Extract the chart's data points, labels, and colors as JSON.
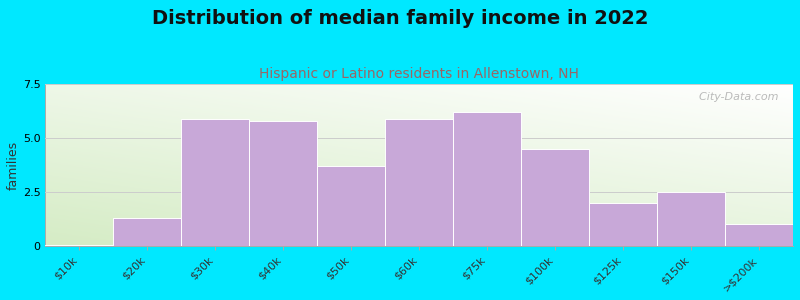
{
  "title": "Distribution of median family income in 2022",
  "subtitle": "Hispanic or Latino residents in Allenstown, NH",
  "ylabel": "families",
  "categories": [
    "$10k",
    "$20k",
    "$30k",
    "$40k",
    "$50k",
    "$60k",
    "$75k",
    "$100k",
    "$125k",
    "$150k",
    ">$200k"
  ],
  "values": [
    0.05,
    1.3,
    5.9,
    5.8,
    3.7,
    5.9,
    6.2,
    4.5,
    2.0,
    2.5,
    1.0
  ],
  "bar_color": "#c8a8d8",
  "bar_edge_color": "#ffffff",
  "ylim": [
    0,
    7.5
  ],
  "yticks": [
    0,
    2.5,
    5.0,
    7.5
  ],
  "background_color": "#00e8ff",
  "title_fontsize": 14,
  "subtitle_fontsize": 10,
  "subtitle_color": "#996666",
  "ylabel_fontsize": 9,
  "tick_fontsize": 8,
  "watermark": "  City-Data.com"
}
